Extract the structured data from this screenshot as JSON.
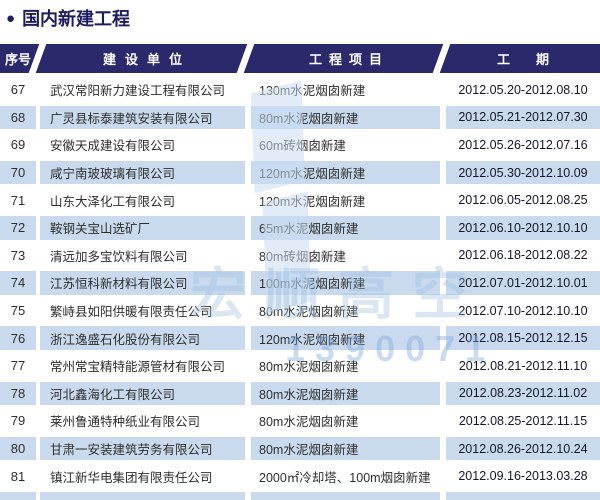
{
  "title": {
    "bullet": "●",
    "text": "国内新建工程"
  },
  "table": {
    "headers": [
      "序号",
      "建设单位",
      "工程项目",
      "工期"
    ],
    "rows": [
      {
        "no": "67",
        "company": "武汉常阳新力建设工程有限公司",
        "project": "130m水泥烟囱新建",
        "period": "2012.05.20-2012.08.10"
      },
      {
        "no": "68",
        "company": "广灵县标泰建筑安装有限公司",
        "project": "80m水泥烟囱新建",
        "period": "2012.05.21-2012.07.30"
      },
      {
        "no": "69",
        "company": "安徽天成建设有限公司",
        "project": "60m砖烟囱新建",
        "period": "2012.05.26-2012.07.16"
      },
      {
        "no": "70",
        "company": "咸宁南玻玻璃有限公司",
        "project": "120m水泥烟囱新建",
        "period": "2012.05.30-2012.10.09"
      },
      {
        "no": "71",
        "company": "山东大泽化工有限公司",
        "project": "120m水泥烟囱新建",
        "period": "2012.06.05-2012.08.25"
      },
      {
        "no": "72",
        "company": "鞍钢关宝山选矿厂",
        "project": "65m水泥烟囱新建",
        "period": "2012.06.10-2012.10.10"
      },
      {
        "no": "73",
        "company": "清远加多宝饮料有限公司",
        "project": "80m砖烟囱新建",
        "period": "2012.06.18-2012.08.22"
      },
      {
        "no": "74",
        "company": "江苏恒科新材料有限公司",
        "project": "100m水泥烟囱新建",
        "period": "2012.07.01-2012.10.01"
      },
      {
        "no": "75",
        "company": "繁峙县如阳供暖有限责任公司",
        "project": "80m水泥烟囱新建",
        "period": "2012.07.10-2012.10.10"
      },
      {
        "no": "76",
        "company": "浙江逸盛石化股份有限公司",
        "project": "120m水泥烟囱新建",
        "period": "2012.08.15-2012.12.15"
      },
      {
        "no": "77",
        "company": "常州常宝精特能源管材有限公司",
        "project": "80m水泥烟囱新建",
        "period": "2012.08.21-2012.11.10"
      },
      {
        "no": "78",
        "company": "河北鑫海化工有限公司",
        "project": "80m水泥烟囱新建",
        "period": "2012.08.23-2012.11.02"
      },
      {
        "no": "79",
        "company": "莱州鲁通特种纸业有限公司",
        "project": "80m水泥烟囱新建",
        "period": "2012.08.25-2012.11.15"
      },
      {
        "no": "80",
        "company": "甘肃一安装建筑劳务有限公司",
        "project": "80m水泥烟囱新建",
        "period": "2012.08.26-2012.10.24"
      },
      {
        "no": "81",
        "company": "镇江新华电集团有限责任公司",
        "project": "2000㎡冷却塔、100m烟囱新建",
        "period": "2012.09.16-2013.03.28"
      }
    ]
  },
  "watermark": {
    "logo": "宏顺高空",
    "phone": "1390071"
  },
  "colors": {
    "navy": "#29296b",
    "row_alt": "#c9daee",
    "title_text": "#1d1d62"
  }
}
